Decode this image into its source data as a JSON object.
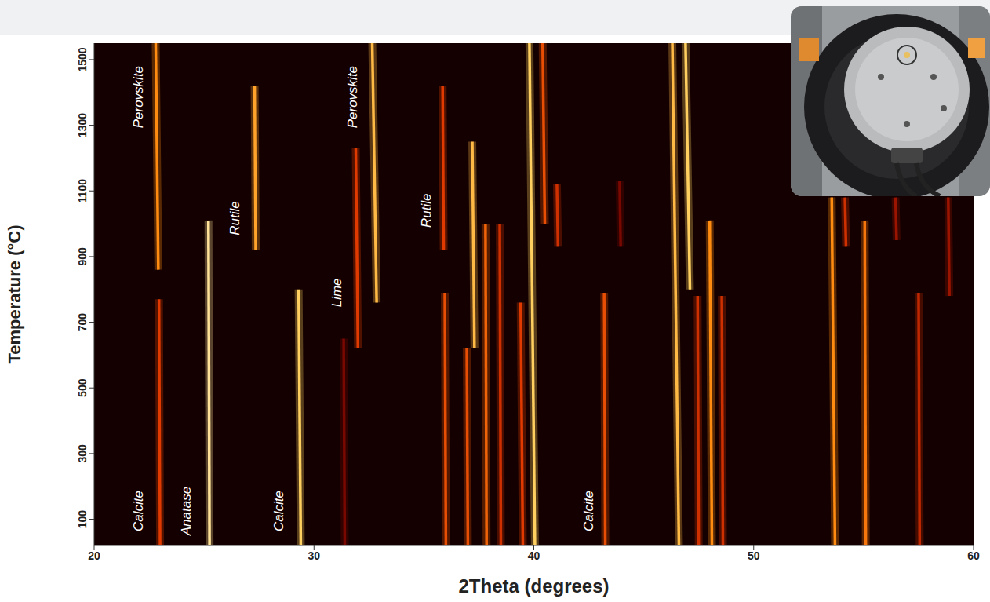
{
  "chart_data": {
    "type": "heatmap",
    "x_label": "2Theta (degrees)",
    "y_label": "Temperature (°C)",
    "xlim": [
      20,
      60
    ],
    "xticks": [
      20,
      30,
      40,
      50,
      60
    ],
    "ylim": [
      20,
      1550
    ],
    "yticks": [
      100,
      300,
      500,
      700,
      900,
      1100,
      1300,
      1500
    ],
    "grid": false,
    "intensity_range": [
      0,
      1
    ],
    "peaks": [
      {
        "two_theta": [
          23.0,
          22.95
        ],
        "temperature": [
          20,
          770
        ],
        "intensity": 0.55
      },
      {
        "two_theta": [
          22.92,
          22.8
        ],
        "temperature": [
          860,
          1550
        ],
        "intensity": 0.75
      },
      {
        "two_theta": [
          25.25,
          25.2
        ],
        "temperature": [
          20,
          1010
        ],
        "intensity": 0.95
      },
      {
        "two_theta": [
          27.35,
          27.3
        ],
        "temperature": [
          920,
          1420
        ],
        "intensity": 0.8
      },
      {
        "two_theta": [
          29.4,
          29.3
        ],
        "temperature": [
          20,
          800
        ],
        "intensity": 0.9
      },
      {
        "two_theta": [
          31.4,
          31.35
        ],
        "temperature": [
          20,
          650
        ],
        "intensity": 0.25
      },
      {
        "two_theta": [
          32.0,
          31.9
        ],
        "temperature": [
          620,
          1230
        ],
        "intensity": 0.55
      },
      {
        "two_theta": [
          32.85,
          32.65
        ],
        "temperature": [
          760,
          1550
        ],
        "intensity": 0.85
      },
      {
        "two_theta": [
          35.9,
          35.85
        ],
        "temperature": [
          920,
          1420
        ],
        "intensity": 0.55
      },
      {
        "two_theta": [
          36.0,
          35.95
        ],
        "temperature": [
          20,
          790
        ],
        "intensity": 0.6
      },
      {
        "two_theta": [
          37.0,
          36.95
        ],
        "temperature": [
          20,
          620
        ],
        "intensity": 0.6
      },
      {
        "two_theta": [
          37.3,
          37.2
        ],
        "temperature": [
          620,
          1250
        ],
        "intensity": 0.85
      },
      {
        "two_theta": [
          37.85,
          37.8
        ],
        "temperature": [
          20,
          1000
        ],
        "intensity": 0.65
      },
      {
        "two_theta": [
          38.5,
          38.45
        ],
        "temperature": [
          20,
          1000
        ],
        "intensity": 0.5
      },
      {
        "two_theta": [
          39.5,
          39.4
        ],
        "temperature": [
          20,
          760
        ],
        "intensity": 0.55
      },
      {
        "two_theta": [
          40.05,
          39.8
        ],
        "temperature": [
          20,
          1550
        ],
        "intensity": 0.9
      },
      {
        "two_theta": [
          40.5,
          40.4
        ],
        "temperature": [
          1000,
          1550
        ],
        "intensity": 0.6
      },
      {
        "two_theta": [
          41.1,
          41.05
        ],
        "temperature": [
          930,
          1120
        ],
        "intensity": 0.5
      },
      {
        "two_theta": [
          43.25,
          43.2
        ],
        "temperature": [
          20,
          790
        ],
        "intensity": 0.6
      },
      {
        "two_theta": [
          43.95,
          43.9
        ],
        "temperature": [
          930,
          1130
        ],
        "intensity": 0.25
      },
      {
        "two_theta": [
          46.6,
          46.3
        ],
        "temperature": [
          20,
          1550
        ],
        "intensity": 0.85
      },
      {
        "two_theta": [
          47.1,
          46.9
        ],
        "temperature": [
          800,
          1550
        ],
        "intensity": 0.9
      },
      {
        "two_theta": [
          47.5,
          47.45
        ],
        "temperature": [
          20,
          780
        ],
        "intensity": 0.5
      },
      {
        "two_theta": [
          48.1,
          48.0
        ],
        "temperature": [
          20,
          1010
        ],
        "intensity": 0.75
      },
      {
        "two_theta": [
          48.6,
          48.55
        ],
        "temperature": [
          20,
          780
        ],
        "intensity": 0.5
      },
      {
        "two_theta": [
          53.7,
          53.55
        ],
        "temperature": [
          20,
          1080
        ],
        "intensity": 0.75
      },
      {
        "two_theta": [
          54.2,
          54.15
        ],
        "temperature": [
          930,
          1080
        ],
        "intensity": 0.5
      },
      {
        "two_theta": [
          55.1,
          55.05
        ],
        "temperature": [
          20,
          1010
        ],
        "intensity": 0.7
      },
      {
        "two_theta": [
          56.5,
          56.45
        ],
        "temperature": [
          950,
          1080
        ],
        "intensity": 0.35
      },
      {
        "two_theta": [
          57.55,
          57.5
        ],
        "temperature": [
          20,
          790
        ],
        "intensity": 0.45
      },
      {
        "two_theta": [
          58.9,
          58.85
        ],
        "temperature": [
          780,
          1080
        ],
        "intensity": 0.35
      }
    ],
    "annotations": [
      {
        "text": "Perovskite",
        "x": 22.03,
        "y": 1386
      },
      {
        "text": "Calcite",
        "x": 22.0,
        "y": 125
      },
      {
        "text": "Anatase",
        "x": 24.2,
        "y": 125
      },
      {
        "text": "Rutile",
        "x": 26.4,
        "y": 1017
      },
      {
        "text": "Calcite",
        "x": 28.4,
        "y": 125
      },
      {
        "text": "Lime",
        "x": 31.05,
        "y": 790
      },
      {
        "text": "Perovskite",
        "x": 31.77,
        "y": 1386
      },
      {
        "text": "Rutile",
        "x": 35.1,
        "y": 1040
      },
      {
        "text": "Calcite",
        "x": 42.5,
        "y": 125
      }
    ]
  }
}
